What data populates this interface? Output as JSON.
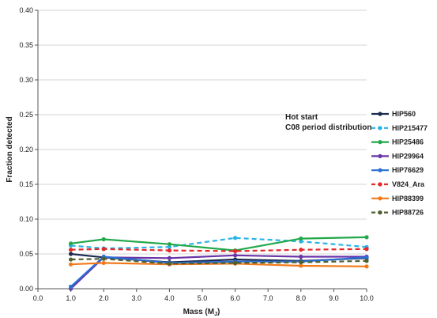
{
  "chart_data": {
    "type": "line",
    "xlabel": "Mass (M",
    "xlabel_sub": "J",
    "xlabel_close": ")",
    "ylabel": "Fraction detected",
    "xlim": [
      0,
      10
    ],
    "ylim": [
      0,
      0.4
    ],
    "x_ticks": [
      "0.0",
      "1.0",
      "2.0",
      "3.0",
      "4.0",
      "5.0",
      "6.0",
      "7.0",
      "8.0",
      "9.0",
      "10.0"
    ],
    "y_ticks": [
      "0.00",
      "0.05",
      "0.10",
      "0.15",
      "0.20",
      "0.25",
      "0.30",
      "0.35",
      "0.40"
    ],
    "grid": "horizontal",
    "legend_position": "right",
    "annotation": [
      "Hot start",
      "C08 period distribution"
    ],
    "x": [
      1,
      2,
      4,
      6,
      8,
      10
    ],
    "series": [
      {
        "name": "HIP560",
        "color": "#1b2a4e",
        "dash": "solid",
        "values": [
          0.05,
          0.045,
          0.038,
          0.042,
          0.04,
          0.044
        ]
      },
      {
        "name": "HIP215477",
        "color": "#2ab4e6",
        "dash": "dashed",
        "values": [
          0.062,
          0.058,
          0.06,
          0.073,
          0.068,
          0.06
        ]
      },
      {
        "name": "HIP25486",
        "color": "#22a84a",
        "dash": "solid",
        "values": [
          0.065,
          0.071,
          0.064,
          0.055,
          0.072,
          0.074
        ]
      },
      {
        "name": "HIP29964",
        "color": "#6a35a6",
        "dash": "solid",
        "values": [
          0.0,
          0.045,
          0.044,
          0.048,
          0.046,
          0.046
        ]
      },
      {
        "name": "HIP76629",
        "color": "#2a6fd6",
        "dash": "solid",
        "values": [
          0.003,
          0.046,
          0.037,
          0.039,
          0.039,
          0.045
        ]
      },
      {
        "name": "V824_Ara",
        "color": "#e52828",
        "dash": "dashed",
        "values": [
          0.056,
          0.057,
          0.055,
          0.054,
          0.056,
          0.057
        ]
      },
      {
        "name": "HIP88399",
        "color": "#f07a1a",
        "dash": "solid",
        "values": [
          0.035,
          0.037,
          0.035,
          0.036,
          0.033,
          0.032
        ]
      },
      {
        "name": "HIP88726",
        "color": "#4f5f2e",
        "dash": "dashed",
        "values": [
          0.042,
          0.043,
          0.036,
          0.037,
          0.038,
          0.04
        ]
      }
    ]
  }
}
